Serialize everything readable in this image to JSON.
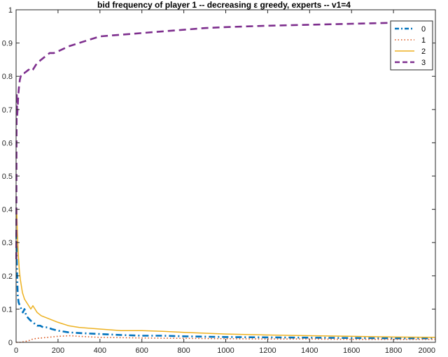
{
  "chart_data": {
    "type": "line",
    "title": "bid frequency of player 1 -- decreasing ε greedy, experts -- v1=4",
    "xlabel": "",
    "ylabel": "",
    "xlim": [
      0,
      2000
    ],
    "ylim": [
      0,
      1
    ],
    "xticks": [
      0,
      200,
      400,
      600,
      800,
      1000,
      1200,
      1400,
      1600,
      1800,
      2000
    ],
    "yticks": [
      0,
      0.1,
      0.2,
      0.3,
      0.4,
      0.5,
      0.6,
      0.7,
      0.8,
      0.9,
      1
    ],
    "grid": false,
    "legend_position": "top-right",
    "series": [
      {
        "name": "0",
        "color": "#0072bd",
        "style": "dashdot",
        "points": [
          [
            1,
            0.33
          ],
          [
            3,
            0.25
          ],
          [
            5,
            0.2
          ],
          [
            8,
            0.14
          ],
          [
            12,
            0.12
          ],
          [
            18,
            0.11
          ],
          [
            25,
            0.1
          ],
          [
            32,
            0.09
          ],
          [
            40,
            0.1
          ],
          [
            48,
            0.08
          ],
          [
            55,
            0.075
          ],
          [
            62,
            0.07
          ],
          [
            70,
            0.065
          ],
          [
            80,
            0.06
          ],
          [
            90,
            0.055
          ],
          [
            100,
            0.05
          ],
          [
            115,
            0.05
          ],
          [
            130,
            0.045
          ],
          [
            150,
            0.045
          ],
          [
            170,
            0.04
          ],
          [
            200,
            0.035
          ],
          [
            250,
            0.03
          ],
          [
            300,
            0.028
          ],
          [
            400,
            0.025
          ],
          [
            500,
            0.022
          ],
          [
            600,
            0.02
          ],
          [
            700,
            0.02
          ],
          [
            800,
            0.018
          ],
          [
            1000,
            0.016
          ],
          [
            1200,
            0.015
          ],
          [
            1400,
            0.014
          ],
          [
            1600,
            0.013
          ],
          [
            1800,
            0.012
          ],
          [
            2000,
            0.012
          ]
        ]
      },
      {
        "name": "1",
        "color": "#d95319",
        "style": "dotted",
        "points": [
          [
            1,
            0.0
          ],
          [
            20,
            0.0
          ],
          [
            40,
            0.002
          ],
          [
            60,
            0.005
          ],
          [
            80,
            0.01
          ],
          [
            100,
            0.012
          ],
          [
            150,
            0.015
          ],
          [
            200,
            0.018
          ],
          [
            260,
            0.02
          ],
          [
            300,
            0.018
          ],
          [
            400,
            0.015
          ],
          [
            500,
            0.014
          ],
          [
            600,
            0.013
          ],
          [
            800,
            0.012
          ],
          [
            1000,
            0.011
          ],
          [
            1200,
            0.01
          ],
          [
            1400,
            0.01
          ],
          [
            1600,
            0.009
          ],
          [
            1800,
            0.009
          ],
          [
            2000,
            0.009
          ]
        ]
      },
      {
        "name": "2",
        "color": "#edb120",
        "style": "solid",
        "points": [
          [
            1,
            0.38
          ],
          [
            3,
            0.4
          ],
          [
            6,
            0.33
          ],
          [
            10,
            0.27
          ],
          [
            15,
            0.22
          ],
          [
            20,
            0.19
          ],
          [
            25,
            0.17
          ],
          [
            30,
            0.15
          ],
          [
            35,
            0.14
          ],
          [
            40,
            0.13
          ],
          [
            50,
            0.12
          ],
          [
            60,
            0.11
          ],
          [
            70,
            0.1
          ],
          [
            80,
            0.11
          ],
          [
            90,
            0.1
          ],
          [
            100,
            0.09
          ],
          [
            120,
            0.08
          ],
          [
            140,
            0.075
          ],
          [
            160,
            0.07
          ],
          [
            200,
            0.06
          ],
          [
            250,
            0.05
          ],
          [
            300,
            0.045
          ],
          [
            400,
            0.04
          ],
          [
            500,
            0.035
          ],
          [
            600,
            0.035
          ],
          [
            700,
            0.033
          ],
          [
            800,
            0.03
          ],
          [
            1000,
            0.025
          ],
          [
            1200,
            0.022
          ],
          [
            1400,
            0.02
          ],
          [
            1600,
            0.018
          ],
          [
            1800,
            0.016
          ],
          [
            2000,
            0.015
          ]
        ]
      },
      {
        "name": "3",
        "color": "#7e2f8e",
        "style": "dashed",
        "points": [
          [
            1,
            0.25
          ],
          [
            2,
            0.6
          ],
          [
            3,
            0.75
          ],
          [
            5,
            0.68
          ],
          [
            7,
            0.7
          ],
          [
            10,
            0.74
          ],
          [
            14,
            0.77
          ],
          [
            18,
            0.79
          ],
          [
            22,
            0.8
          ],
          [
            30,
            0.81
          ],
          [
            40,
            0.81
          ],
          [
            50,
            0.815
          ],
          [
            60,
            0.82
          ],
          [
            70,
            0.815
          ],
          [
            80,
            0.82
          ],
          [
            100,
            0.84
          ],
          [
            120,
            0.85
          ],
          [
            140,
            0.86
          ],
          [
            160,
            0.87
          ],
          [
            180,
            0.87
          ],
          [
            200,
            0.875
          ],
          [
            250,
            0.89
          ],
          [
            300,
            0.9
          ],
          [
            350,
            0.91
          ],
          [
            400,
            0.92
          ],
          [
            500,
            0.925
          ],
          [
            600,
            0.93
          ],
          [
            700,
            0.935
          ],
          [
            800,
            0.94
          ],
          [
            900,
            0.945
          ],
          [
            1000,
            0.948
          ],
          [
            1200,
            0.952
          ],
          [
            1400,
            0.955
          ],
          [
            1600,
            0.958
          ],
          [
            1800,
            0.961
          ],
          [
            2000,
            0.963
          ]
        ]
      }
    ]
  }
}
